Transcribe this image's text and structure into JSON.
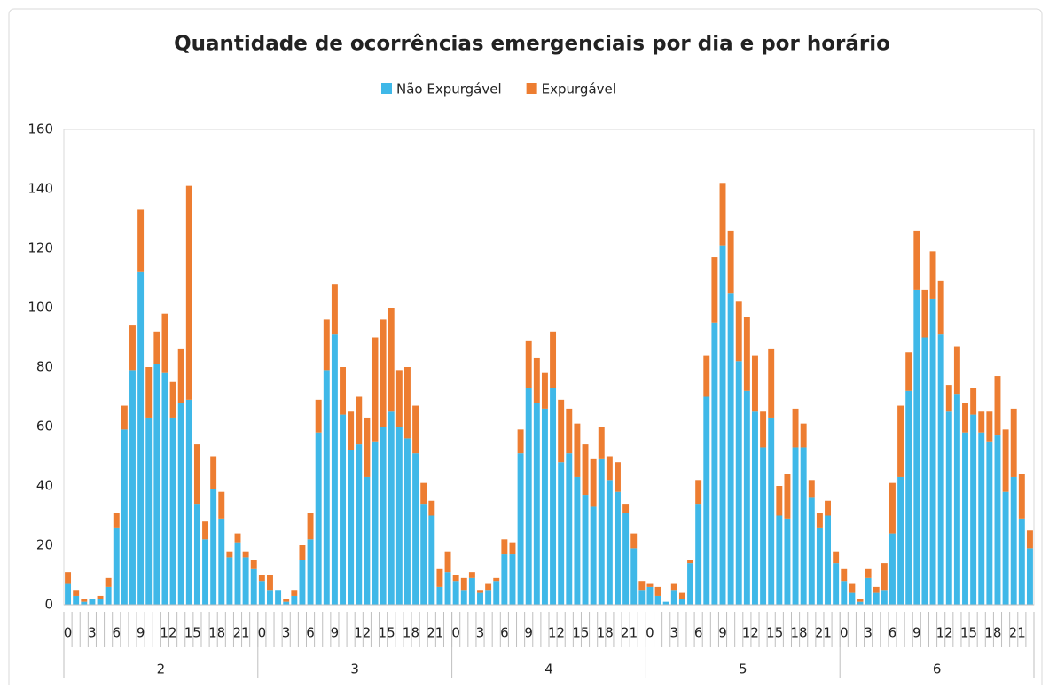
{
  "chart_data": {
    "type": "stacked_bar",
    "title": "Quantidade de ocorrências emergenciais por dia e por horário",
    "categories": [
      "0",
      null,
      null,
      "3",
      null,
      null,
      "6",
      null,
      null,
      "9",
      null,
      null,
      "12",
      null,
      null,
      "15",
      null,
      null,
      "18",
      null,
      null,
      "21",
      null,
      null,
      "0",
      null,
      null,
      "3",
      null,
      null,
      "6",
      null,
      null,
      "9",
      null,
      null,
      "12",
      null,
      null,
      "15",
      null,
      null,
      "18",
      null,
      null,
      "21",
      null,
      null,
      "0",
      null,
      null,
      "3",
      null,
      null,
      "6",
      null,
      null,
      "9",
      null,
      null,
      "12",
      null,
      null,
      "15",
      null,
      null,
      "18",
      null,
      null,
      "21",
      null,
      null,
      "0",
      null,
      null,
      "3",
      null,
      null,
      "6",
      null,
      null,
      "9",
      null,
      null,
      "12",
      null,
      null,
      "15",
      null,
      null,
      "18",
      null,
      null,
      "21",
      null,
      null,
      "0",
      null,
      null,
      "3",
      null,
      null,
      "6",
      null,
      null,
      "9",
      null,
      null,
      "12",
      null,
      null,
      "15",
      null,
      null,
      "18",
      null,
      null,
      "21",
      null,
      null
    ],
    "groups": [
      "2",
      "3",
      "4",
      "5",
      "6"
    ],
    "series": [
      {
        "name": "Não Expurgável",
        "color": "#3fb8e8",
        "values": [
          7,
          3,
          1,
          2,
          2,
          6,
          26,
          59,
          79,
          112,
          63,
          81,
          78,
          63,
          68,
          69,
          34,
          22,
          39,
          29,
          16,
          21,
          16,
          12,
          8,
          5,
          5,
          1,
          3,
          15,
          22,
          58,
          79,
          91,
          64,
          52,
          54,
          43,
          55,
          60,
          65,
          60,
          56,
          51,
          34,
          30,
          6,
          11,
          8,
          5,
          9,
          4,
          5,
          8,
          17,
          17,
          51,
          73,
          68,
          66,
          73,
          48,
          51,
          43,
          37,
          33,
          49,
          42,
          38,
          31,
          19,
          5,
          6,
          3,
          1,
          5,
          2,
          14,
          34,
          70,
          95,
          121,
          105,
          82,
          72,
          65,
          53,
          63,
          30,
          29,
          53,
          53,
          36,
          26,
          30,
          14,
          8,
          4,
          1,
          9,
          4,
          5,
          24,
          43,
          72,
          106,
          90,
          103,
          91,
          65,
          71,
          58,
          64,
          58,
          55,
          57,
          38,
          43,
          29,
          19
        ]
      },
      {
        "name": "Expurgável",
        "color": "#ed7d31",
        "values": [
          4,
          2,
          1,
          0,
          1,
          3,
          5,
          8,
          15,
          21,
          17,
          11,
          20,
          12,
          18,
          72,
          20,
          6,
          11,
          9,
          2,
          3,
          2,
          3,
          2,
          5,
          0,
          1,
          2,
          5,
          9,
          11,
          17,
          17,
          16,
          13,
          16,
          20,
          35,
          36,
          35,
          19,
          24,
          16,
          7,
          5,
          6,
          7,
          2,
          4,
          2,
          1,
          2,
          1,
          5,
          4,
          8,
          16,
          15,
          12,
          19,
          21,
          15,
          18,
          17,
          16,
          11,
          8,
          10,
          3,
          5,
          3,
          1,
          3,
          0,
          2,
          2,
          1,
          8,
          14,
          22,
          21,
          21,
          20,
          25,
          19,
          12,
          23,
          10,
          15,
          13,
          8,
          6,
          5,
          5,
          4,
          4,
          3,
          1,
          3,
          2,
          9,
          17,
          24,
          13,
          20,
          16,
          16,
          18,
          9,
          16,
          10,
          9,
          7,
          10,
          20,
          21,
          23,
          15,
          6
        ]
      }
    ],
    "ylim": [
      0,
      160
    ],
    "yticks": [
      0,
      20,
      40,
      60,
      80,
      100,
      120,
      140,
      160
    ],
    "grid": false,
    "legend": "top"
  }
}
